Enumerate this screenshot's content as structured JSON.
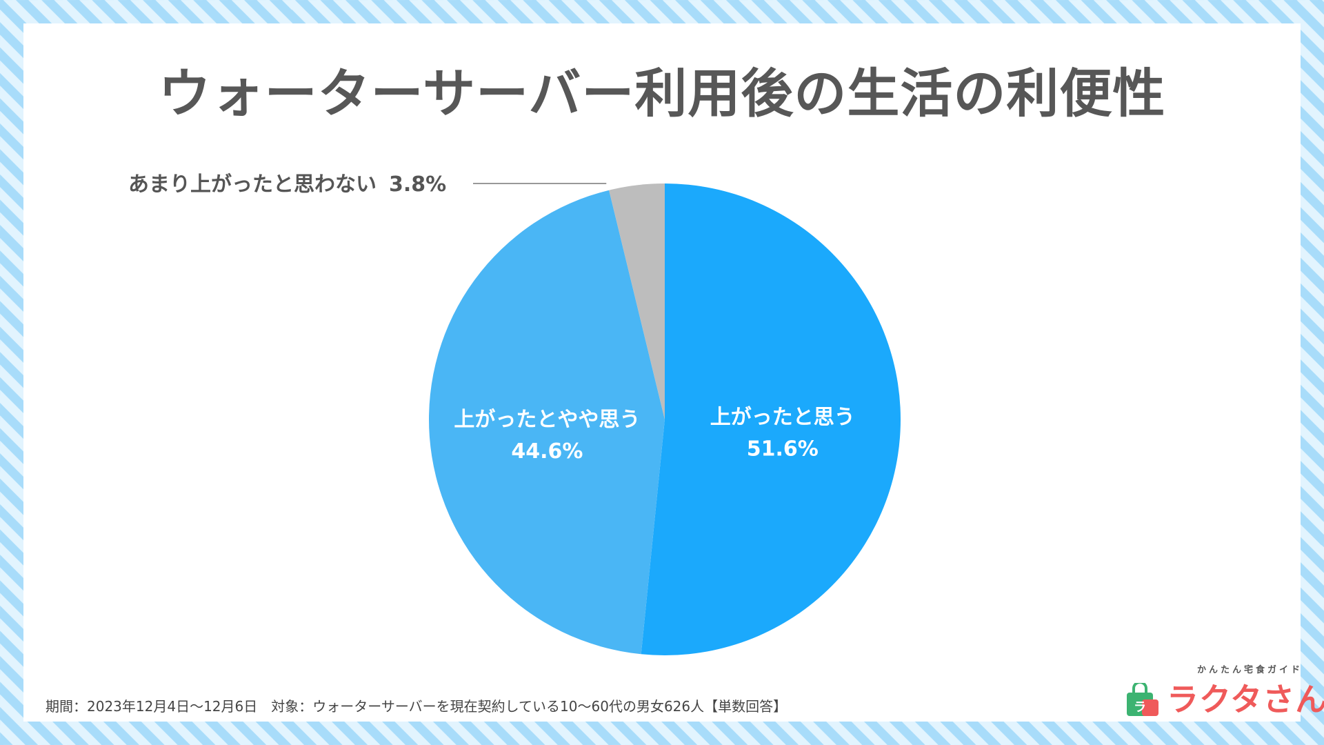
{
  "chart_data": {
    "type": "pie",
    "title": "ウォーターサーバー利用後の生活の利便性",
    "start": "12 o'clock, clockwise",
    "slices": [
      {
        "label": "上がったと思う",
        "value": 51.6,
        "display_value": "51.6%",
        "color": "#1ba9fc",
        "text_color": "#ffffff",
        "label_placement": "inside"
      },
      {
        "label": "上がったとやや思う",
        "value": 44.6,
        "display_value": "44.6%",
        "color": "#4ab6f5",
        "text_color": "#ffffff",
        "label_placement": "inside"
      },
      {
        "label": "あまり上がったと思わない",
        "value": 3.8,
        "display_value": "3.8%",
        "color": "#bdbdbd",
        "text_color": "#555555",
        "label_placement": "outside-leader"
      }
    ]
  },
  "footnote": "期間：2023年12月4日〜12月6日　対象：ウォーターサーバーを現在契約している10〜60代の男女626人【単数回答】",
  "logo": {
    "tagline": "かんたん宅食ガイド",
    "name": "ラクタさん",
    "mark_text": "ラ",
    "brand_color": "#ef5a5a",
    "accent_color": "#3cb371"
  }
}
